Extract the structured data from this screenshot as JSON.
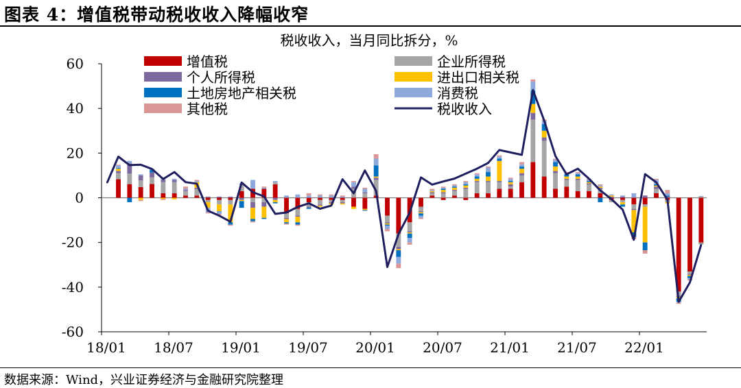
{
  "figure": {
    "title": "图表 4：增值税带动税收收入降幅收窄",
    "source": "数据来源：Wind，兴业证券经济与金融研究院整理"
  },
  "chart_data": {
    "type": "bar",
    "stacked": true,
    "title": "税收收入，当月同比拆分，%",
    "xlabel": "",
    "ylabel": "",
    "ylim": [
      -60,
      60
    ],
    "yticks": [
      -60,
      -40,
      -20,
      0,
      20,
      40,
      60
    ],
    "tick_labels": [
      "18/01",
      "18/07",
      "19/01",
      "19/07",
      "20/01",
      "20/07",
      "21/01",
      "21/07",
      "22/01"
    ],
    "tick_indices": [
      0,
      6,
      12,
      18,
      24,
      30,
      36,
      42,
      48
    ],
    "legend_position": "top",
    "categories": [
      "2018-01",
      "2018-02",
      "2018-03",
      "2018-04",
      "2018-05",
      "2018-06",
      "2018-07",
      "2018-08",
      "2018-09",
      "2018-10",
      "2018-11",
      "2018-12",
      "2019-01",
      "2019-02",
      "2019-03",
      "2019-04",
      "2019-05",
      "2019-06",
      "2019-07",
      "2019-08",
      "2019-09",
      "2019-10",
      "2019-11",
      "2019-12",
      "2020-01",
      "2020-02",
      "2020-03",
      "2020-04",
      "2020-05",
      "2020-06",
      "2020-07",
      "2020-08",
      "2020-09",
      "2020-10",
      "2020-11",
      "2020-12",
      "2021-01",
      "2021-02",
      "2021-03",
      "2021-04",
      "2021-05",
      "2021-06",
      "2021-07",
      "2021-08",
      "2021-09",
      "2021-10",
      "2021-11",
      "2021-12",
      "2022-01",
      "2022-02",
      "2022-03",
      "2022-04",
      "2022-05",
      "2022-06"
    ],
    "series": [
      {
        "name": "增值税",
        "color": "#c00000",
        "values": [
          0,
          8.3,
          6.1,
          4.8,
          6.2,
          2.0,
          2.0,
          1.0,
          1.0,
          -1.0,
          -1.0,
          -1.0,
          3.0,
          4.0,
          4.0,
          6.0,
          -7.0,
          -5.0,
          -2.0,
          -1.0,
          -1.0,
          -1.0,
          -4.0,
          -5.0,
          1.0,
          -8.0,
          -16.0,
          -11.0,
          -4.0,
          1.0,
          -1.0,
          1.0,
          -1.0,
          2.0,
          2.0,
          4.0,
          4.0,
          7.0,
          16.0,
          9.5,
          4.0,
          5.0,
          3.0,
          3.0,
          2.0,
          -1.0,
          -1.0,
          -3.0,
          -3.0,
          2.0,
          -1.0,
          -42.0,
          -33.0,
          -20.0
        ]
      },
      {
        "name": "企业所得税",
        "color": "#a6a6a6",
        "values": [
          0,
          2.7,
          4.7,
          3.0,
          3.0,
          5.0,
          5.0,
          2.0,
          3.0,
          -1.0,
          -2.0,
          -2.0,
          3.0,
          -2.0,
          -2.0,
          1.0,
          -2.0,
          -3.0,
          -2.0,
          -2.0,
          -1.0,
          -1.0,
          4.0,
          2.0,
          7.0,
          -3.0,
          -6.0,
          -4.0,
          -2.0,
          1.0,
          2.0,
          2.0,
          4.0,
          5.0,
          5.0,
          3.0,
          1.0,
          3.0,
          19.0,
          16.0,
          7.0,
          3.0,
          5.0,
          3.0,
          2.0,
          -1.0,
          -1.0,
          -2.0,
          -1.0,
          2.0,
          -1.0,
          -2.0,
          -1.0,
          0.5
        ]
      },
      {
        "name": "个人所得税",
        "color": "#7f6a9f",
        "values": [
          0,
          1.0,
          4.4,
          2.2,
          2.2,
          1.0,
          1.0,
          0.5,
          0.5,
          0.5,
          0.5,
          0.5,
          -1.0,
          -2.5,
          -2.0,
          -1.0,
          -0.5,
          -0.5,
          -0.5,
          -0.5,
          -0.5,
          -0.5,
          1.0,
          0.5,
          1.0,
          -0.5,
          -1.0,
          -0.5,
          -0.5,
          0.5,
          0.5,
          0.5,
          0.5,
          0.5,
          0.5,
          0.5,
          1.0,
          1.0,
          3.0,
          1.5,
          1.0,
          0.5,
          0.5,
          0.5,
          0.5,
          0.5,
          0.5,
          -0.5,
          1.0,
          1.0,
          0.5,
          -0.5,
          -0.5,
          -0.3
        ]
      },
      {
        "name": "进出口相关税",
        "color": "#ffc000",
        "values": [
          0,
          1.0,
          0,
          -1.0,
          0,
          -0.5,
          -0.7,
          0,
          2.5,
          -2.5,
          -3.0,
          -8.0,
          -0.5,
          -5.0,
          -5.0,
          -1.0,
          -1.5,
          -2.5,
          0,
          -0.5,
          -0.5,
          -0.5,
          -1.0,
          -0.5,
          0.5,
          -0.5,
          -0.5,
          -0.5,
          -0.5,
          0.5,
          1.0,
          1.0,
          1.0,
          1.0,
          2.0,
          9.0,
          1.0,
          2.0,
          4.0,
          3.0,
          2.0,
          1.0,
          1.0,
          0.5,
          0.5,
          0.5,
          -1.0,
          -10.0,
          -16.0,
          0.5,
          -0.5,
          -0.5,
          -0.5,
          -0.2
        ]
      },
      {
        "name": "土地房地产相关税",
        "color": "#0070c0",
        "values": [
          0,
          0.3,
          -2.0,
          0,
          1.0,
          0,
          0,
          0,
          0,
          0,
          -0.2,
          -1.0,
          -3.0,
          -1.0,
          -0.5,
          -0.5,
          -0.5,
          -1.0,
          -0.5,
          0,
          0,
          0,
          0,
          -0.3,
          5.0,
          -0.5,
          -3.0,
          -2.0,
          -1.0,
          0,
          0.5,
          0.5,
          0.5,
          1.0,
          2.0,
          1.0,
          0.5,
          1.0,
          6.0,
          3.0,
          2.0,
          1.0,
          1.0,
          0.5,
          -2.0,
          0,
          -1.0,
          -2.0,
          -3.5,
          0.5,
          0.5,
          -1.5,
          -1.0,
          -0.2
        ]
      },
      {
        "name": "消费税",
        "color": "#8ea9db",
        "values": [
          0,
          1.2,
          1.3,
          0.5,
          0.5,
          0.5,
          0.5,
          0.5,
          0.5,
          -2.0,
          -1.0,
          0,
          0.5,
          4.0,
          0.5,
          0.5,
          1.0,
          1.5,
          1.0,
          1.0,
          1.0,
          0.5,
          2.0,
          1.5,
          3.0,
          -1.5,
          -3.0,
          -2.0,
          -1.0,
          0.5,
          0.5,
          0.5,
          1.0,
          1.0,
          2.0,
          1.0,
          1.0,
          1.0,
          4.0,
          1.5,
          1.0,
          0.5,
          0.5,
          0.5,
          0.5,
          0.5,
          0.5,
          2.0,
          0,
          2.0,
          1.0,
          -0.5,
          -0.5,
          0.3
        ]
      },
      {
        "name": "其他税",
        "color": "#d99694",
        "values": [
          0,
          0.3,
          0,
          -0.5,
          0,
          -0.5,
          0,
          1.0,
          0.5,
          -0.5,
          -0.5,
          -0.5,
          0,
          -0.5,
          0.5,
          0,
          -0.5,
          -0.5,
          1.0,
          0.5,
          0.5,
          0.5,
          0.5,
          0.5,
          2.0,
          -1.0,
          -2.0,
          -1.0,
          -0.5,
          0.5,
          0.5,
          0.5,
          0.5,
          0.5,
          0.5,
          0.5,
          0.5,
          1.0,
          1.0,
          0.5,
          0.5,
          0.5,
          0.5,
          0.5,
          0.5,
          0,
          0,
          -1.0,
          -1.5,
          0.5,
          1.5,
          -0.5,
          -0.5,
          -0.1
        ]
      },
      {
        "name": "税收收入",
        "color": "#1f1f5f",
        "type": "line",
        "values": [
          6.8,
          18.4,
          14.6,
          14.8,
          12.9,
          8.4,
          11.5,
          7.0,
          6.3,
          -5.8,
          -8.0,
          -10.7,
          6.8,
          2.5,
          0.6,
          -7.2,
          -6.6,
          -4.1,
          -2.5,
          -4.9,
          -3.5,
          8.3,
          2.0,
          12.2,
          3.0,
          -31.0,
          -16.3,
          -6.6,
          9.1,
          5.9,
          7.3,
          8.6,
          10.8,
          13.0,
          15.6,
          21.4,
          20.3,
          19.2,
          48.2,
          34.5,
          18.7,
          10.5,
          13.0,
          8.5,
          3.3,
          -0.6,
          -5.3,
          -18.8,
          10.6,
          6.9,
          -0.9,
          -46.6,
          -37.9,
          -21.1
        ]
      }
    ]
  }
}
